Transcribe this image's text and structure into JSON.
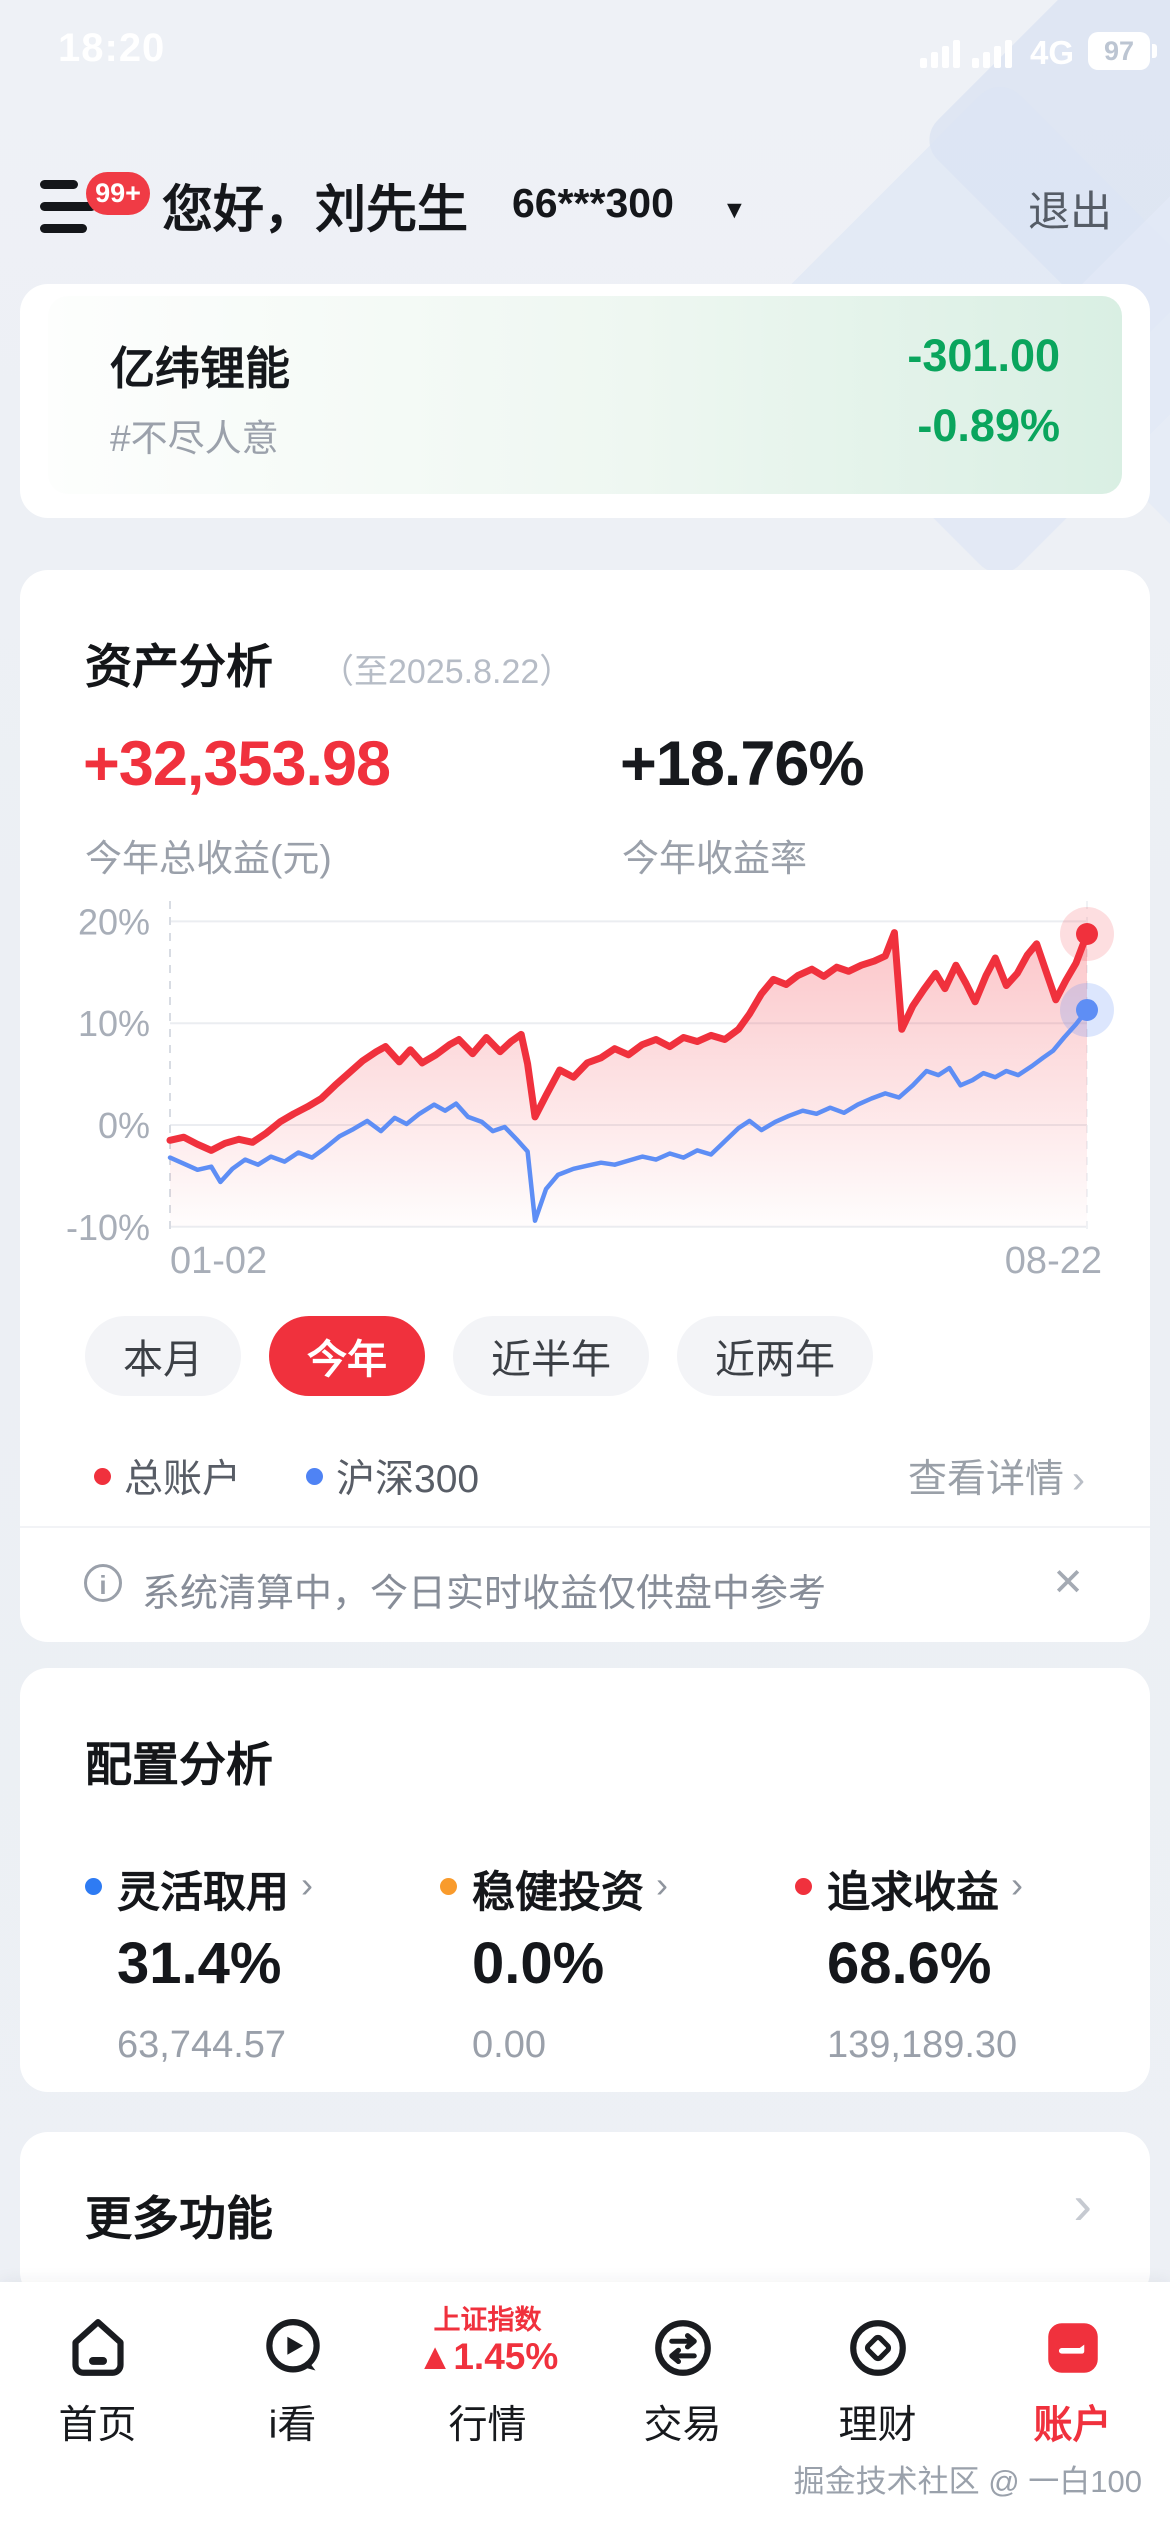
{
  "status_bar": {
    "time": "18:20",
    "network": "4G",
    "battery": "97"
  },
  "header": {
    "menu_badge": "99+",
    "greeting": "您好，刘先生",
    "account": "66***300",
    "logout": "退出"
  },
  "stock_card": {
    "name": "亿纬锂能",
    "tag": "#不尽人意",
    "change": "-301.00",
    "change_pct": "-0.89%",
    "down_color": "#0aa55d"
  },
  "asset_card": {
    "title": "资产分析",
    "as_of": "（至2025.8.22）",
    "profit": "+32,353.98",
    "profit_label": "今年总收益(元)",
    "rate": "+18.76%",
    "rate_label": "今年收益率",
    "tabs": [
      {
        "label": "本月",
        "active": false
      },
      {
        "label": "今年",
        "active": true
      },
      {
        "label": "近半年",
        "active": false
      },
      {
        "label": "近两年",
        "active": false
      }
    ],
    "legend": [
      {
        "label": "总账户",
        "color": "#f0313d"
      },
      {
        "label": "沪深300",
        "color": "#4f83f4"
      }
    ],
    "detail_link": "查看详情",
    "notice": "系统清算中，今日实时收益仅供盘中参考",
    "chart_data": {
      "type": "line",
      "x_ticks": [
        {
          "label": "01-02"
        },
        {
          "label": "08-22"
        }
      ],
      "y_ticks": [
        {
          "label": "20%",
          "value": 20
        },
        {
          "label": "10%",
          "value": 10
        },
        {
          "label": "0%",
          "value": 0
        },
        {
          "label": "-10%",
          "value": -10
        }
      ],
      "ylim": [
        -10.5,
        22
      ],
      "grid": true,
      "legend_position": "bottom-left",
      "series": [
        {
          "name": "总账户",
          "color": "#f0313d",
          "width": 7,
          "area": true,
          "end_value": 18.76,
          "points": [
            [
              0,
              -1.5
            ],
            [
              0.015,
              -1.2
            ],
            [
              0.03,
              -1.9
            ],
            [
              0.045,
              -2.5
            ],
            [
              0.06,
              -1.8
            ],
            [
              0.075,
              -1.4
            ],
            [
              0.09,
              -1.7
            ],
            [
              0.105,
              -0.8
            ],
            [
              0.12,
              0.3
            ],
            [
              0.135,
              1.1
            ],
            [
              0.15,
              1.8
            ],
            [
              0.165,
              2.6
            ],
            [
              0.18,
              3.9
            ],
            [
              0.195,
              5.1
            ],
            [
              0.21,
              6.3
            ],
            [
              0.225,
              7.2
            ],
            [
              0.235,
              7.7
            ],
            [
              0.25,
              6.2
            ],
            [
              0.262,
              7.4
            ],
            [
              0.275,
              6.1
            ],
            [
              0.29,
              6.9
            ],
            [
              0.305,
              7.9
            ],
            [
              0.315,
              8.4
            ],
            [
              0.33,
              7.0
            ],
            [
              0.345,
              8.6
            ],
            [
              0.36,
              7.2
            ],
            [
              0.372,
              8.2
            ],
            [
              0.383,
              8.9
            ],
            [
              0.39,
              6.0
            ],
            [
              0.398,
              0.8
            ],
            [
              0.41,
              2.9
            ],
            [
              0.425,
              5.4
            ],
            [
              0.44,
              4.7
            ],
            [
              0.455,
              6.1
            ],
            [
              0.47,
              6.6
            ],
            [
              0.485,
              7.5
            ],
            [
              0.5,
              6.9
            ],
            [
              0.515,
              7.9
            ],
            [
              0.53,
              8.4
            ],
            [
              0.545,
              7.7
            ],
            [
              0.56,
              8.6
            ],
            [
              0.575,
              8.2
            ],
            [
              0.59,
              8.8
            ],
            [
              0.605,
              8.4
            ],
            [
              0.62,
              9.4
            ],
            [
              0.632,
              10.9
            ],
            [
              0.645,
              12.9
            ],
            [
              0.658,
              14.3
            ],
            [
              0.672,
              13.8
            ],
            [
              0.685,
              14.7
            ],
            [
              0.7,
              15.3
            ],
            [
              0.713,
              14.6
            ],
            [
              0.727,
              15.5
            ],
            [
              0.74,
              15.1
            ],
            [
              0.754,
              15.7
            ],
            [
              0.768,
              16.1
            ],
            [
              0.78,
              16.6
            ],
            [
              0.79,
              18.9
            ],
            [
              0.798,
              9.4
            ],
            [
              0.81,
              11.7
            ],
            [
              0.822,
              13.3
            ],
            [
              0.835,
              14.9
            ],
            [
              0.845,
              13.4
            ],
            [
              0.857,
              15.7
            ],
            [
              0.868,
              13.9
            ],
            [
              0.878,
              12.1
            ],
            [
              0.89,
              14.7
            ],
            [
              0.9,
              16.4
            ],
            [
              0.912,
              13.7
            ],
            [
              0.924,
              14.9
            ],
            [
              0.935,
              16.7
            ],
            [
              0.945,
              17.8
            ],
            [
              0.956,
              14.9
            ],
            [
              0.966,
              12.3
            ],
            [
              0.977,
              14.2
            ],
            [
              0.988,
              15.9
            ],
            [
              1,
              18.76
            ]
          ]
        },
        {
          "name": "沪深300",
          "color": "#5e8ef5",
          "width": 4.5,
          "area": false,
          "end_value": 11.3,
          "points": [
            [
              0,
              -3.2
            ],
            [
              0.015,
              -3.8
            ],
            [
              0.03,
              -4.4
            ],
            [
              0.045,
              -4.1
            ],
            [
              0.055,
              -5.6
            ],
            [
              0.068,
              -4.3
            ],
            [
              0.082,
              -3.4
            ],
            [
              0.096,
              -3.9
            ],
            [
              0.11,
              -3.1
            ],
            [
              0.125,
              -3.6
            ],
            [
              0.14,
              -2.7
            ],
            [
              0.155,
              -3.2
            ],
            [
              0.17,
              -2.2
            ],
            [
              0.185,
              -1.1
            ],
            [
              0.2,
              -0.4
            ],
            [
              0.215,
              0.4
            ],
            [
              0.23,
              -0.6
            ],
            [
              0.245,
              0.7
            ],
            [
              0.258,
              0.1
            ],
            [
              0.272,
              1.1
            ],
            [
              0.288,
              2.0
            ],
            [
              0.3,
              1.4
            ],
            [
              0.312,
              2.1
            ],
            [
              0.325,
              0.8
            ],
            [
              0.34,
              0.3
            ],
            [
              0.352,
              -0.6
            ],
            [
              0.365,
              -0.2
            ],
            [
              0.378,
              -1.4
            ],
            [
              0.39,
              -2.6
            ],
            [
              0.398,
              -9.4
            ],
            [
              0.41,
              -6.3
            ],
            [
              0.423,
              -4.9
            ],
            [
              0.44,
              -4.3
            ],
            [
              0.455,
              -4.0
            ],
            [
              0.47,
              -3.7
            ],
            [
              0.485,
              -3.9
            ],
            [
              0.5,
              -3.5
            ],
            [
              0.515,
              -3.1
            ],
            [
              0.53,
              -3.4
            ],
            [
              0.545,
              -2.8
            ],
            [
              0.56,
              -3.2
            ],
            [
              0.575,
              -2.5
            ],
            [
              0.59,
              -2.9
            ],
            [
              0.605,
              -1.6
            ],
            [
              0.62,
              -0.3
            ],
            [
              0.632,
              0.4
            ],
            [
              0.645,
              -0.5
            ],
            [
              0.66,
              0.3
            ],
            [
              0.675,
              0.9
            ],
            [
              0.69,
              1.4
            ],
            [
              0.705,
              1.1
            ],
            [
              0.72,
              1.7
            ],
            [
              0.735,
              1.2
            ],
            [
              0.75,
              2.0
            ],
            [
              0.765,
              2.6
            ],
            [
              0.78,
              3.1
            ],
            [
              0.795,
              2.7
            ],
            [
              0.81,
              3.9
            ],
            [
              0.825,
              5.3
            ],
            [
              0.838,
              4.9
            ],
            [
              0.85,
              5.6
            ],
            [
              0.862,
              3.9
            ],
            [
              0.875,
              4.4
            ],
            [
              0.887,
              5.1
            ],
            [
              0.9,
              4.7
            ],
            [
              0.912,
              5.3
            ],
            [
              0.925,
              4.9
            ],
            [
              0.94,
              5.8
            ],
            [
              0.952,
              6.6
            ],
            [
              0.963,
              7.3
            ],
            [
              0.975,
              8.6
            ],
            [
              0.988,
              9.9
            ],
            [
              1,
              11.3
            ]
          ]
        }
      ]
    }
  },
  "alloc_card": {
    "title": "配置分析",
    "items": [
      {
        "label": "灵活取用",
        "percent": "31.4%",
        "amount": "63,744.57",
        "color": "#2e7bf3"
      },
      {
        "label": "稳健投资",
        "percent": "0.0%",
        "amount": "0.00",
        "color": "#f99b2c"
      },
      {
        "label": "追求收益",
        "percent": "68.6%",
        "amount": "139,189.30",
        "color": "#f0313d"
      }
    ]
  },
  "more_card": {
    "title": "更多功能"
  },
  "tabbar": {
    "items": [
      {
        "label": "首页",
        "icon": "home-icon",
        "active": false
      },
      {
        "label": "i看",
        "icon": "video-bubble-icon",
        "active": false
      },
      {
        "label": "行情",
        "icon": "index-quote",
        "active": false,
        "index_name": "上证指数",
        "index_change": "▲1.45%"
      },
      {
        "label": "交易",
        "icon": "trade-arrows-icon",
        "active": false
      },
      {
        "label": "理财",
        "icon": "coin-icon",
        "active": false
      },
      {
        "label": "账户",
        "icon": "account-card-icon",
        "active": true
      }
    ]
  },
  "watermark": "掘金技术社区 @ 一白100"
}
